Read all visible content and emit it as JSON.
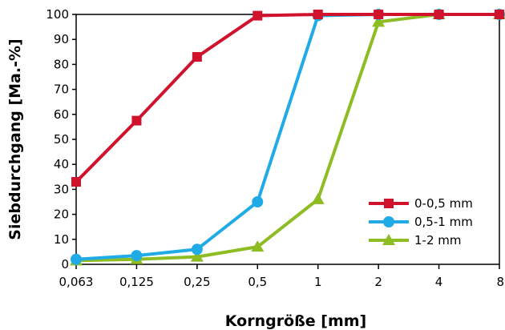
{
  "chart_data": {
    "type": "line",
    "xlabel": "Korngröße [mm]",
    "ylabel": "Siebdurchgang [Ma.-%]",
    "x_scale": "log2",
    "categories": [
      "0,063",
      "0,125",
      "0,25",
      "0,5",
      "1",
      "2",
      "4",
      "8"
    ],
    "yticks": [
      "0",
      "10",
      "20",
      "30",
      "40",
      "50",
      "60",
      "70",
      "80",
      "90",
      "100"
    ],
    "ylim": [
      0,
      100
    ],
    "grid": false,
    "legend_position": "bottom-right",
    "series": [
      {
        "name": "0-0,5 mm",
        "color": "#d0122c",
        "marker": "square",
        "values": [
          33,
          57.5,
          83,
          99.5,
          100,
          100,
          100,
          100
        ]
      },
      {
        "name": "0,5-1 mm",
        "color": "#21abe6",
        "marker": "circle",
        "values": [
          2,
          3.5,
          6,
          25,
          99.5,
          100,
          100,
          100
        ]
      },
      {
        "name": "1-2 mm",
        "color": "#8dbd22",
        "marker": "triangle",
        "values": [
          1.5,
          2,
          3,
          7,
          26,
          97,
          100,
          100
        ]
      }
    ]
  }
}
